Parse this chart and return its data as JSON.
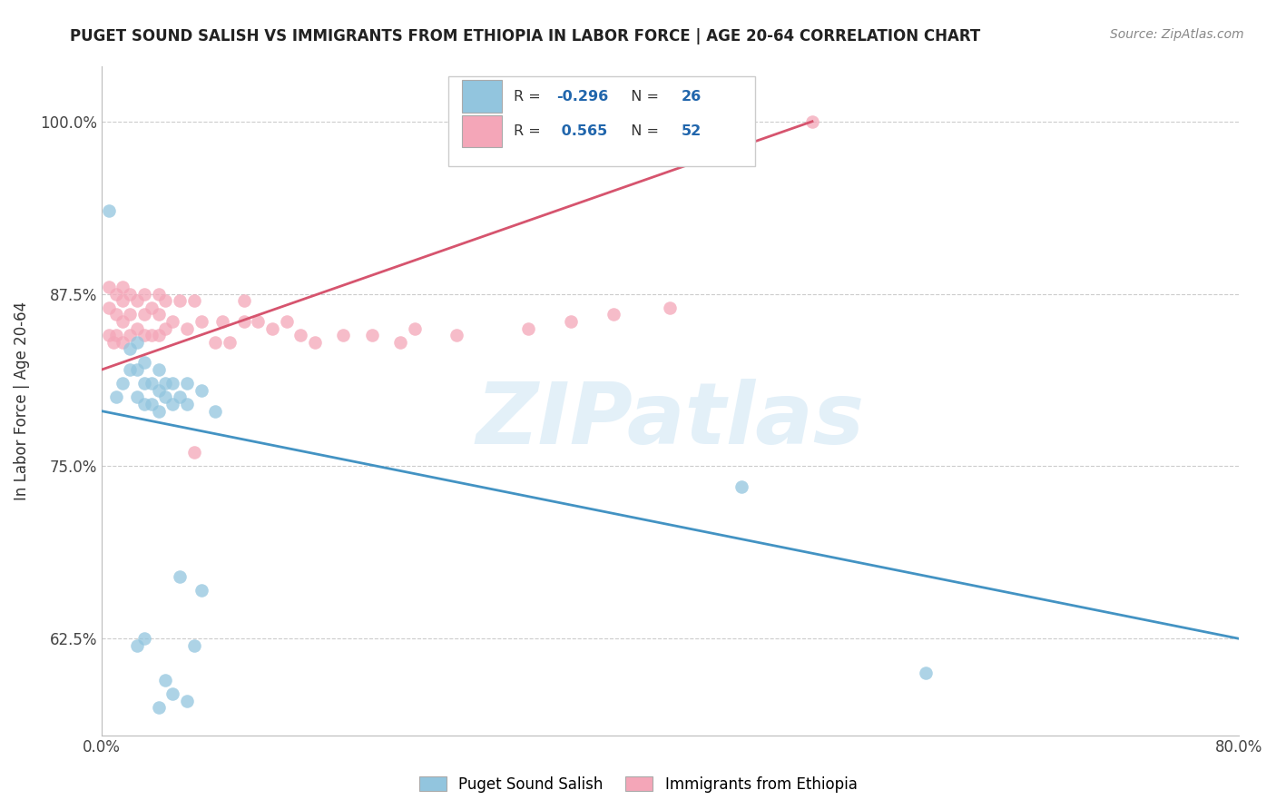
{
  "title": "PUGET SOUND SALISH VS IMMIGRANTS FROM ETHIOPIA IN LABOR FORCE | AGE 20-64 CORRELATION CHART",
  "source_text": "Source: ZipAtlas.com",
  "ylabel": "In Labor Force | Age 20-64",
  "xlim": [
    0.0,
    0.8
  ],
  "ylim": [
    0.555,
    1.04
  ],
  "xticks": [
    0.0,
    0.1,
    0.2,
    0.3,
    0.4,
    0.5,
    0.6,
    0.7,
    0.8
  ],
  "xticklabels": [
    "0.0%",
    "",
    "",
    "",
    "",
    "",
    "",
    "",
    "80.0%"
  ],
  "yticks": [
    0.625,
    0.75,
    0.875,
    1.0
  ],
  "yticklabels": [
    "62.5%",
    "75.0%",
    "87.5%",
    "100.0%"
  ],
  "blue_R": -0.296,
  "blue_N": 26,
  "pink_R": 0.565,
  "pink_N": 52,
  "blue_color": "#92c5de",
  "pink_color": "#f4a6b8",
  "blue_line_color": "#4393c3",
  "pink_line_color": "#d6546e",
  "watermark_text": "ZIPatlas",
  "blue_scatter_x": [
    0.005,
    0.01,
    0.015,
    0.02,
    0.02,
    0.025,
    0.025,
    0.025,
    0.03,
    0.03,
    0.03,
    0.035,
    0.035,
    0.04,
    0.04,
    0.04,
    0.045,
    0.045,
    0.05,
    0.05,
    0.055,
    0.06,
    0.06,
    0.07,
    0.08,
    0.45
  ],
  "blue_scatter_y": [
    0.935,
    0.8,
    0.81,
    0.82,
    0.835,
    0.8,
    0.82,
    0.84,
    0.795,
    0.81,
    0.825,
    0.795,
    0.81,
    0.79,
    0.805,
    0.82,
    0.8,
    0.81,
    0.795,
    0.81,
    0.8,
    0.795,
    0.81,
    0.805,
    0.79,
    0.735
  ],
  "pink_scatter_x": [
    0.005,
    0.005,
    0.005,
    0.008,
    0.01,
    0.01,
    0.01,
    0.015,
    0.015,
    0.015,
    0.015,
    0.02,
    0.02,
    0.02,
    0.025,
    0.025,
    0.03,
    0.03,
    0.03,
    0.035,
    0.035,
    0.04,
    0.04,
    0.04,
    0.045,
    0.045,
    0.05,
    0.055,
    0.06,
    0.065,
    0.065,
    0.07,
    0.08,
    0.085,
    0.09,
    0.1,
    0.1,
    0.11,
    0.12,
    0.13,
    0.14,
    0.15,
    0.17,
    0.19,
    0.21,
    0.22,
    0.25,
    0.3,
    0.33,
    0.36,
    0.4,
    0.5
  ],
  "pink_scatter_y": [
    0.845,
    0.865,
    0.88,
    0.84,
    0.845,
    0.86,
    0.875,
    0.84,
    0.855,
    0.87,
    0.88,
    0.845,
    0.86,
    0.875,
    0.85,
    0.87,
    0.845,
    0.86,
    0.875,
    0.845,
    0.865,
    0.845,
    0.86,
    0.875,
    0.85,
    0.87,
    0.855,
    0.87,
    0.85,
    0.76,
    0.87,
    0.855,
    0.84,
    0.855,
    0.84,
    0.855,
    0.87,
    0.855,
    0.85,
    0.855,
    0.845,
    0.84,
    0.845,
    0.845,
    0.84,
    0.85,
    0.845,
    0.85,
    0.855,
    0.86,
    0.865,
    1.0
  ],
  "extra_blue_x": [
    0.025,
    0.03,
    0.04,
    0.045,
    0.05,
    0.055,
    0.06,
    0.065,
    0.07,
    0.58
  ],
  "extra_blue_y": [
    0.62,
    0.625,
    0.575,
    0.595,
    0.585,
    0.67,
    0.58,
    0.62,
    0.66,
    0.6
  ],
  "legend_blue_label": "Puget Sound Salish",
  "legend_pink_label": "Immigrants from Ethiopia",
  "blue_trendline_x0": 0.0,
  "blue_trendline_y0": 0.79,
  "blue_trendline_x1": 0.8,
  "blue_trendline_y1": 0.625,
  "pink_trendline_x0": 0.0,
  "pink_trendline_y0": 0.82,
  "pink_trendline_x1": 0.5,
  "pink_trendline_y1": 1.0
}
